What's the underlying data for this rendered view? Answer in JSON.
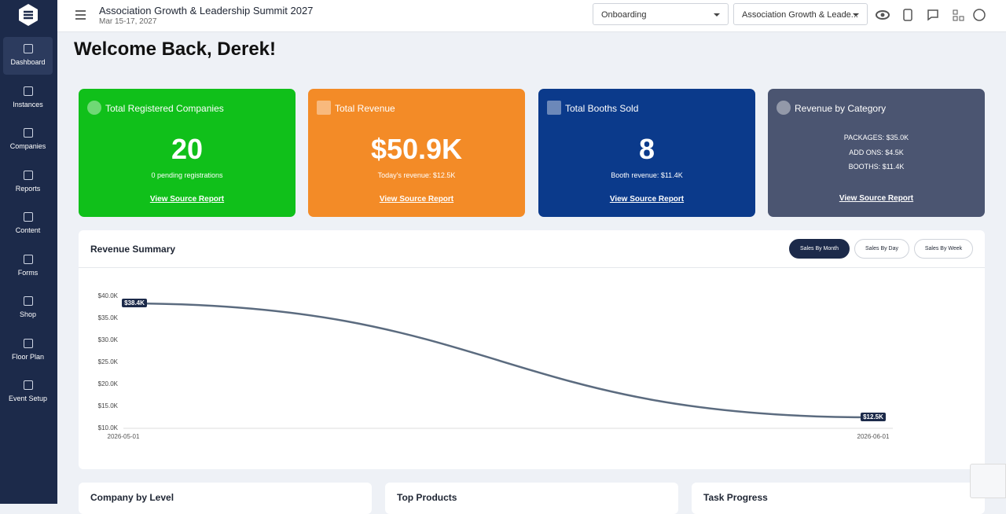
{
  "header": {
    "title": "Association Growth & Leadership Summit 2027",
    "dates": "Mar 15-17, 2027",
    "stage": "Onboarding",
    "event": "Association Growth & Leade..."
  },
  "sidebar": [
    "Dashboard",
    "Instances",
    "Companies",
    "Reports",
    "Content",
    "Forms",
    "Shop",
    "Floor Plan",
    "Event Setup"
  ],
  "welcome": "Welcome Back, Derek!",
  "cards": [
    {
      "title": "Total Registered Companies",
      "value": "20",
      "sub": "0 pending registrations",
      "link": "View Source Report"
    },
    {
      "title": "Total Revenue",
      "value": "$50.9K",
      "sub": "Today's revenue: $12.5K",
      "link": "View Source Report"
    },
    {
      "title": "Total Booths Sold",
      "value": "8",
      "sub": "Booth revenue: $11.4K",
      "link": "View Source Report"
    },
    {
      "title": "Revenue by Category",
      "lines": [
        "PACKAGES: $35.0K",
        "ADD ONS: $4.5K",
        "BOOTHS: $11.4K"
      ],
      "link": "View Source Report"
    }
  ],
  "revenue_summary": {
    "title": "Revenue Summary",
    "tabs": [
      "Sales By Month",
      "Sales By Day",
      "Sales By Week"
    ]
  },
  "chart_data": {
    "type": "line",
    "x": [
      "2026-05-01",
      "2026-06-01"
    ],
    "series": [
      {
        "color": "#5b6b7f",
        "values": [
          38400,
          12500
        ],
        "value_labels": [
          "$38.4K",
          "$12.5K"
        ]
      }
    ],
    "ylim": [
      10000,
      40000
    ],
    "yticks": [
      {
        "value": 10000,
        "label": "$10.0K"
      },
      {
        "value": 15000,
        "label": "$15.0K"
      },
      {
        "value": 20000,
        "label": "$20.0K"
      },
      {
        "value": 25000,
        "label": "$25.0K"
      },
      {
        "value": 30000,
        "label": "$30.0K"
      },
      {
        "value": 35000,
        "label": "$35.0K"
      },
      {
        "value": 40000,
        "label": "$40.0K"
      }
    ]
  },
  "bottom_panels": [
    "Company by Level",
    "Top Products",
    "Task Progress"
  ]
}
